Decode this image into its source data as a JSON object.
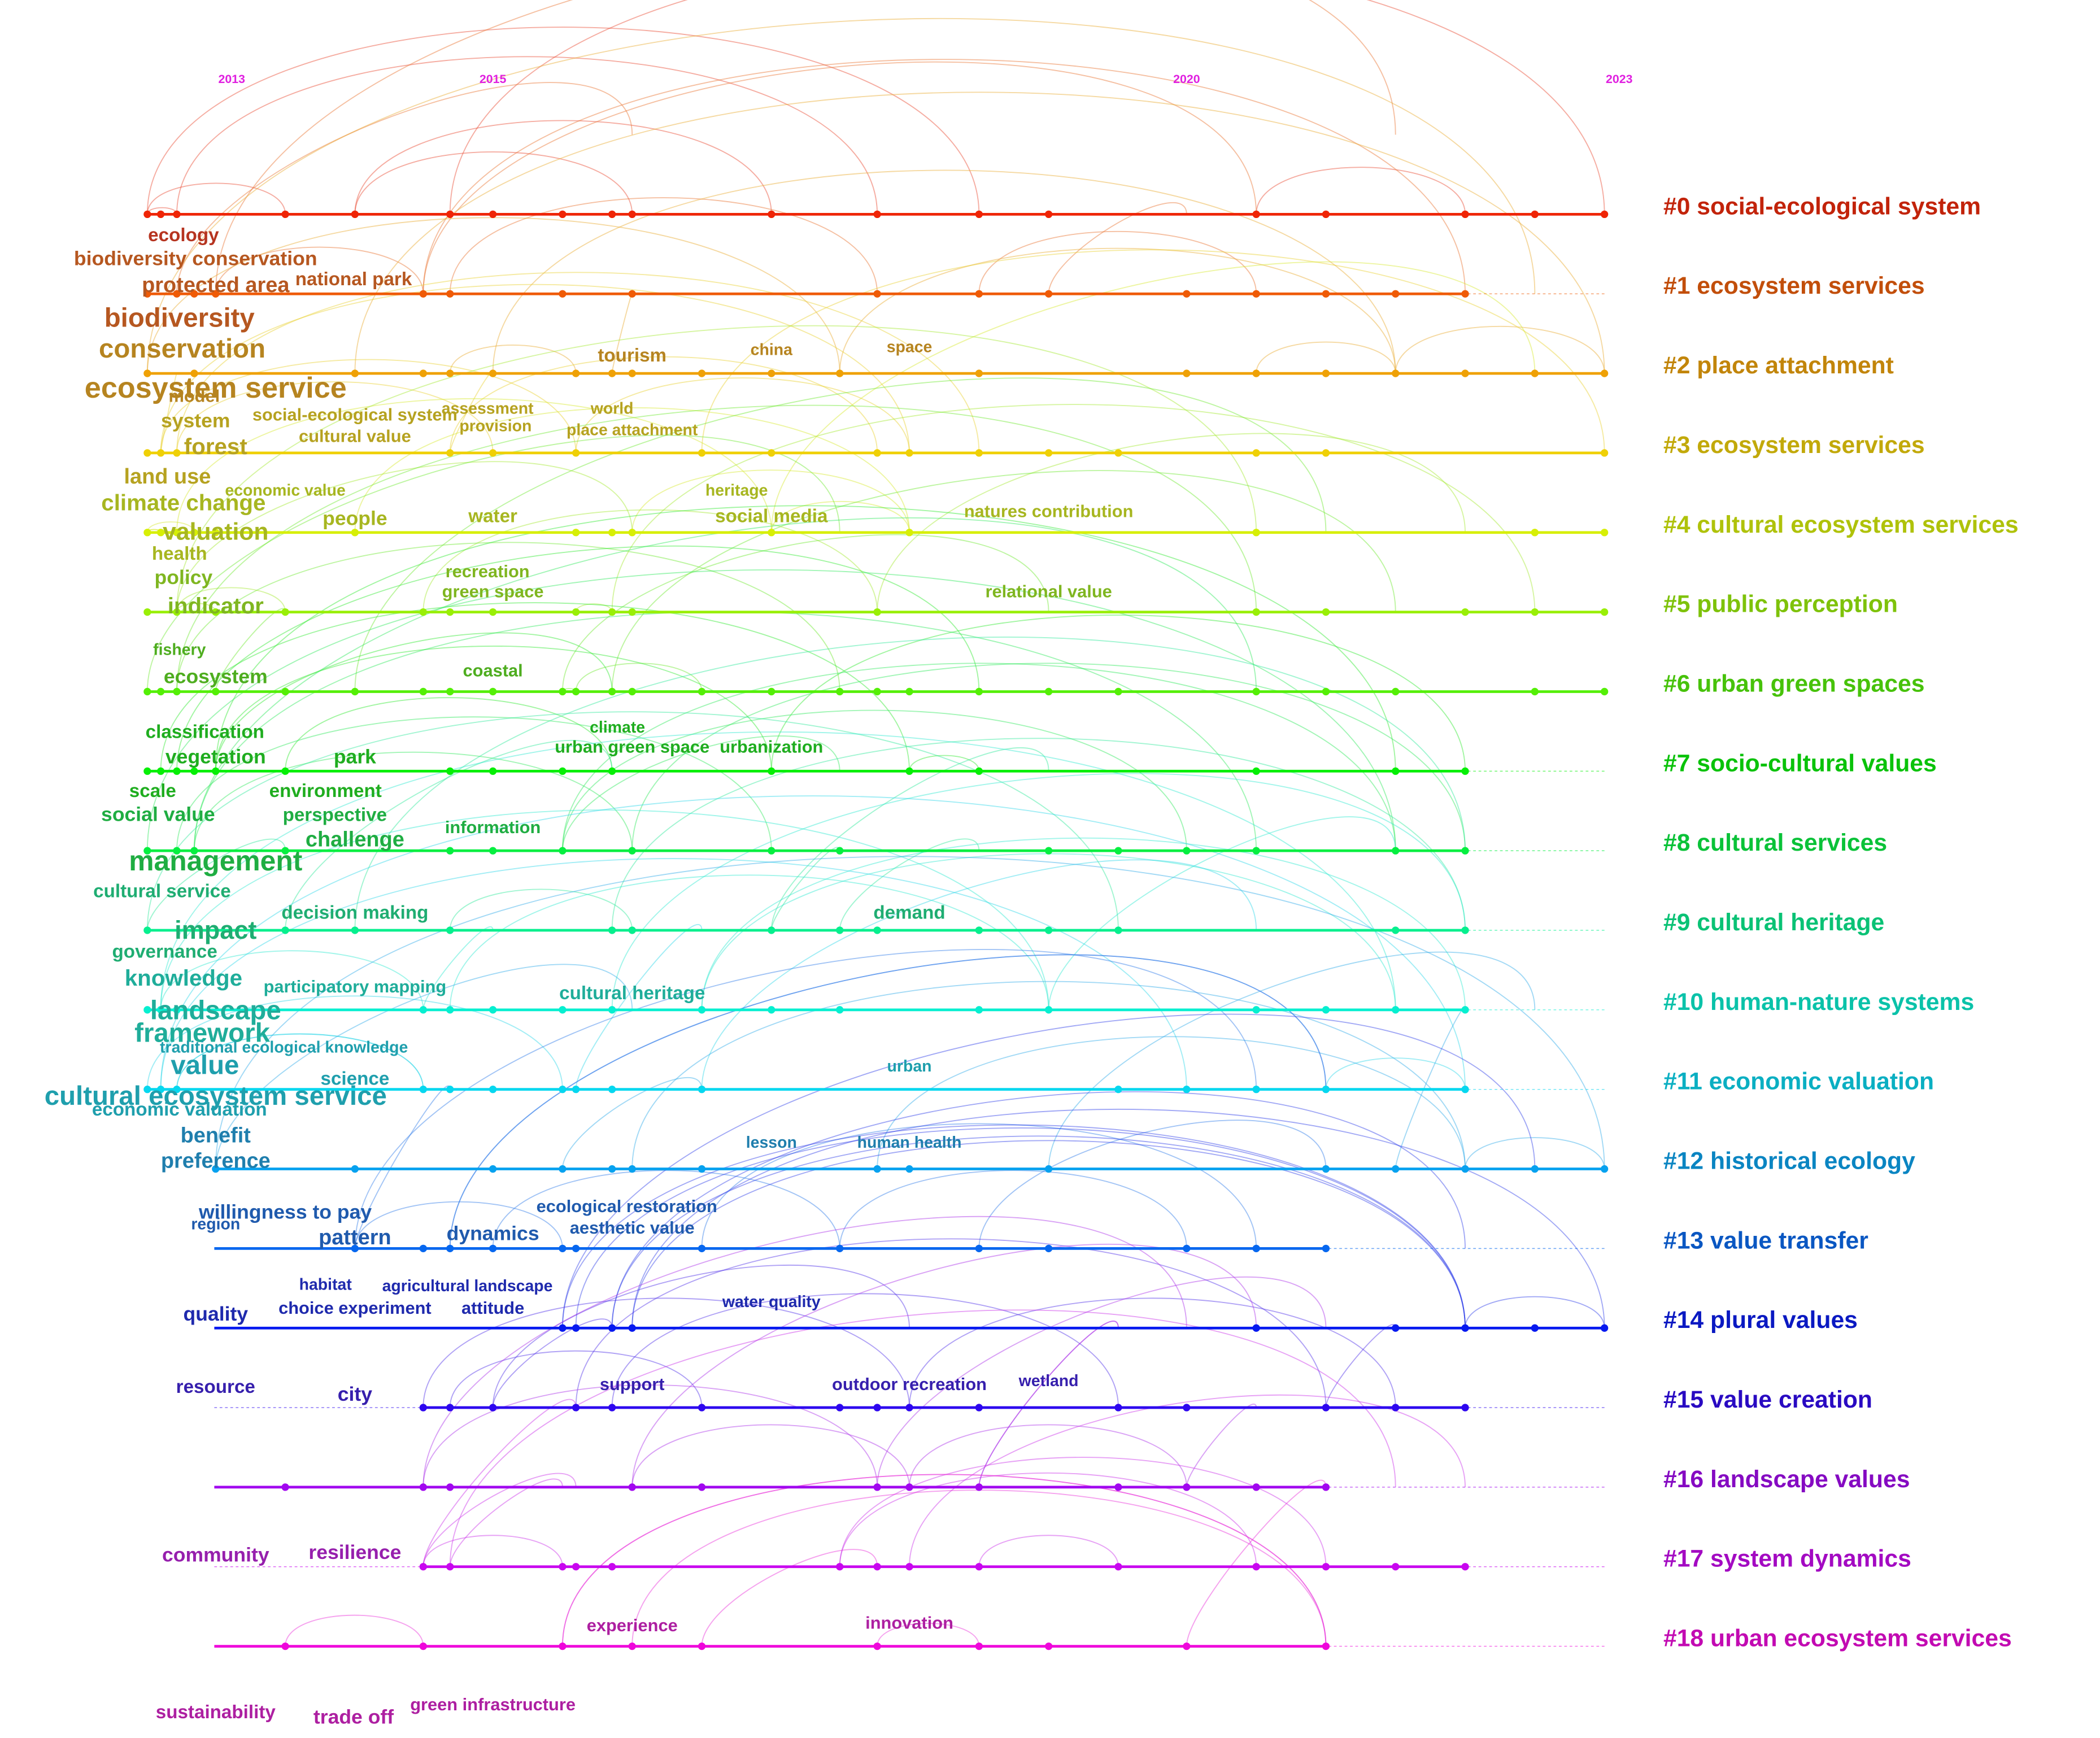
{
  "years": [
    "2013",
    "2015",
    "2020",
    "2023"
  ],
  "clusters": [
    {
      "label": "#0 social-ecological system"
    },
    {
      "label": "#1 ecosystem services"
    },
    {
      "label": "#2 place attachment"
    },
    {
      "label": "#3 ecosystem services"
    },
    {
      "label": "#4 cultural ecosystem services"
    },
    {
      "label": "#5 public perception"
    },
    {
      "label": "#6 urban green spaces"
    },
    {
      "label": "#7 socio-cultural values"
    },
    {
      "label": "#8 cultural services"
    },
    {
      "label": "#9 cultural heritage"
    },
    {
      "label": "#10 human-nature systems"
    },
    {
      "label": "#11 economic valuation"
    },
    {
      "label": "#12 historical ecology"
    },
    {
      "label": "#13 value transfer"
    },
    {
      "label": "#14 plural values"
    },
    {
      "label": "#15 value creation"
    },
    {
      "label": "#16 landscape values"
    },
    {
      "label": "#17 system dynamics"
    },
    {
      "label": "#18 urban ecosystem services"
    }
  ],
  "keywords": [
    "ecology",
    "biodiversity conservation",
    "protected area",
    "national park",
    "biodiversity",
    "conservation",
    "ecosystem service",
    "tourism",
    "china",
    "space",
    "model",
    "system",
    "social-ecological system",
    "assessment",
    "world",
    "forest",
    "cultural value",
    "provision",
    "place attachment",
    "land use",
    "economic value",
    "heritage",
    "climate change",
    "people",
    "water",
    "social media",
    "natures contribution",
    "valuation",
    "health",
    "recreation",
    "green space",
    "relational value",
    "policy",
    "indicator",
    "fishery",
    "ecosystem",
    "coastal",
    "climate",
    "classification",
    "urban green space",
    "urbanization",
    "vegetation",
    "park",
    "scale",
    "environment",
    "social value",
    "perspective",
    "information",
    "challenge",
    "management",
    "cultural service",
    "decision making",
    "demand",
    "impact",
    "governance",
    "knowledge",
    "participatory mapping",
    "cultural heritage",
    "landscape",
    "framework",
    "traditional ecological knowledge",
    "value",
    "science",
    "urban",
    "cultural ecosystem service",
    "economic valuation",
    "benefit",
    "lesson",
    "human health",
    "preference",
    "willingness to pay",
    "region",
    "ecological restoration",
    "aesthetic value",
    "pattern",
    "dynamics",
    "habitat",
    "agricultural landscape",
    "quality",
    "choice experiment",
    "attitude",
    "water quality",
    "resource",
    "city",
    "support",
    "outdoor recreation",
    "wetland",
    "community",
    "resilience",
    "experience",
    "innovation",
    "sustainability",
    "trade off",
    "green infrastructure"
  ]
}
